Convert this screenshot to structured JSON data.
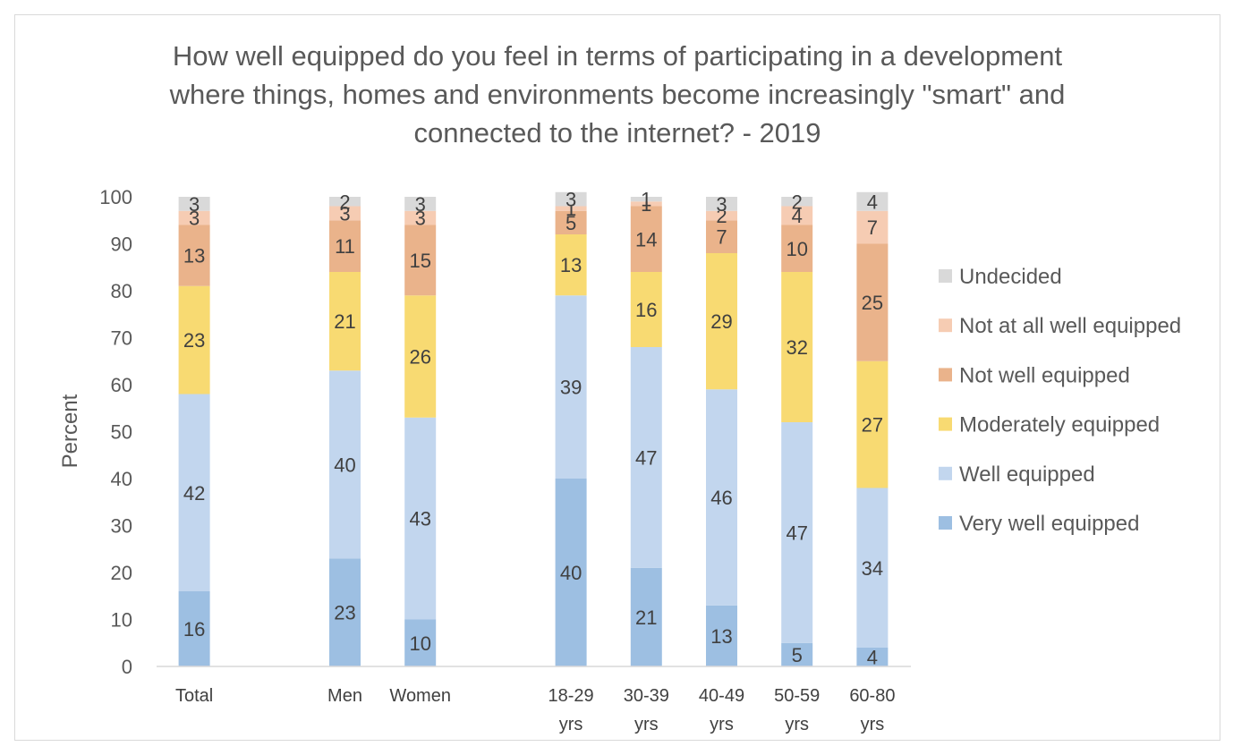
{
  "chart_data": {
    "type": "bar",
    "stacked": true,
    "title_lines": [
      "How well equipped do you feel in terms of participating in a development",
      "where things, homes and environments become increasingly \"smart\" and",
      "connected to the internet? - 2019"
    ],
    "ylabel": "Percent",
    "xlabel": "",
    "ylim": [
      0,
      100
    ],
    "yticks": [
      0,
      10,
      20,
      30,
      40,
      50,
      60,
      70,
      80,
      90,
      100
    ],
    "legend_position": "right",
    "groups": [
      {
        "categories": [
          {
            "line1": "Total",
            "line2": ""
          }
        ]
      },
      {
        "categories": [
          {
            "line1": "Men",
            "line2": ""
          },
          {
            "line1": "Women",
            "line2": ""
          }
        ]
      },
      {
        "categories": [
          {
            "line1": "18-29",
            "line2": "yrs"
          },
          {
            "line1": "30-39",
            "line2": "yrs"
          },
          {
            "line1": "40-49",
            "line2": "yrs"
          },
          {
            "line1": "50-59",
            "line2": "yrs"
          },
          {
            "line1": "60-80",
            "line2": "yrs"
          }
        ]
      }
    ],
    "series": [
      {
        "name": "Very well equipped",
        "color": "#9dbfe2",
        "values": [
          16,
          23,
          10,
          40,
          21,
          13,
          5,
          4
        ]
      },
      {
        "name": "Well equipped",
        "color": "#c2d6ee",
        "values": [
          42,
          40,
          43,
          39,
          47,
          46,
          47,
          34
        ]
      },
      {
        "name": "Moderately equipped",
        "color": "#f8da72",
        "values": [
          23,
          21,
          26,
          13,
          16,
          29,
          32,
          27
        ]
      },
      {
        "name": "Not well equipped",
        "color": "#eab38b",
        "values": [
          13,
          11,
          15,
          5,
          14,
          7,
          10,
          25
        ]
      },
      {
        "name": "Not at all well equipped",
        "color": "#f6ccb3",
        "values": [
          3,
          3,
          3,
          1,
          1,
          2,
          4,
          7
        ]
      },
      {
        "name": "Undecided",
        "color": "#d9d9d9",
        "values": [
          3,
          2,
          3,
          3,
          1,
          3,
          2,
          4
        ]
      }
    ]
  }
}
